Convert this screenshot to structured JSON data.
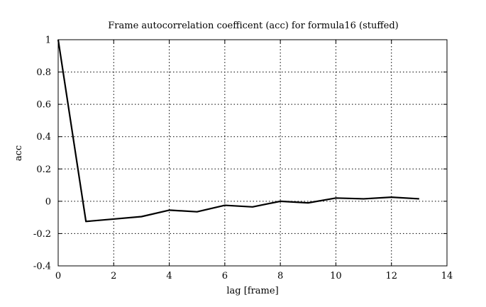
{
  "chart_data": {
    "type": "line",
    "title": "Frame autocorrelation coefficent (acc) for formula16 (stuffed)",
    "xlabel": "lag [frame]",
    "ylabel": "acc",
    "xlim": [
      0,
      14
    ],
    "ylim": [
      -0.4,
      1
    ],
    "xticks": [
      0,
      2,
      4,
      6,
      8,
      10,
      12,
      14
    ],
    "yticks": [
      -0.4,
      -0.2,
      0,
      0.2,
      0.4,
      0.6,
      0.8,
      1
    ],
    "xtick_labels": [
      "0",
      "2",
      "4",
      "6",
      "8",
      "10",
      "12",
      "14"
    ],
    "ytick_labels": [
      "-0.4",
      "-0.2",
      "0",
      "0.2",
      "0.4",
      "0.6",
      "0.8",
      "1"
    ],
    "grid": true,
    "series": [
      {
        "x": [
          0,
          1,
          2,
          3,
          4,
          5,
          6,
          7,
          8,
          9,
          10,
          11,
          12,
          13
        ],
        "y": [
          1.0,
          -0.125,
          -0.11,
          -0.095,
          -0.055,
          -0.065,
          -0.025,
          -0.035,
          0.0,
          -0.01,
          0.02,
          0.015,
          0.025,
          0.015
        ]
      }
    ]
  }
}
